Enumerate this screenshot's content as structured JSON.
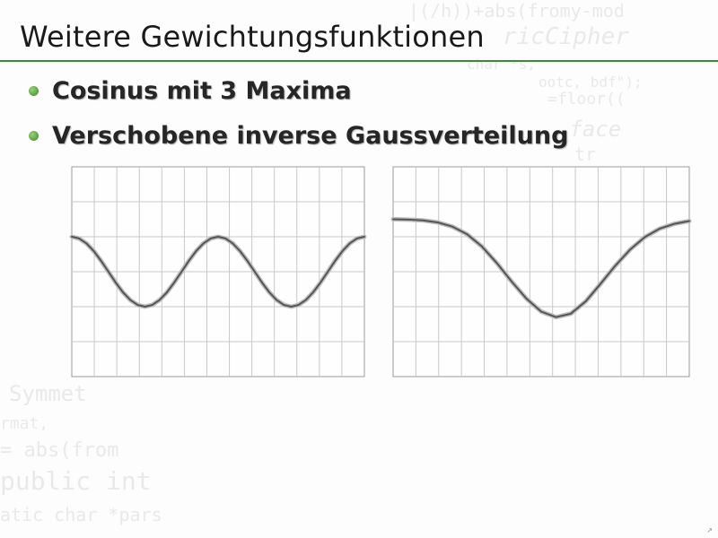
{
  "slide": {
    "title": "Weitere Gewichtungsfunktionen",
    "bullets": [
      "Cosinus mit 3 Maxima",
      "Verschobene inverse Gaussverteilung"
    ]
  },
  "colors": {
    "accent": "#3d8a3d",
    "title_text": "#1a1a1a",
    "curve": "#555555",
    "grid": "#c8c8c8"
  },
  "chart_data": [
    {
      "type": "line",
      "function": "cosine with 3 maxima",
      "x": [
        0.0,
        0.025,
        0.05,
        0.075,
        0.1,
        0.125,
        0.15,
        0.175,
        0.2,
        0.225,
        0.25,
        0.275,
        0.3,
        0.325,
        0.35,
        0.375,
        0.4,
        0.425,
        0.45,
        0.475,
        0.5,
        0.525,
        0.55,
        0.575,
        0.6,
        0.625,
        0.65,
        0.675,
        0.7,
        0.725,
        0.75,
        0.775,
        0.8,
        0.825,
        0.85,
        0.875,
        0.9,
        0.925,
        0.95,
        0.975,
        1.0
      ],
      "values": [
        1.0,
        0.95,
        0.81,
        0.59,
        0.31,
        0.0,
        -0.31,
        -0.59,
        -0.81,
        -0.95,
        -1.0,
        -0.95,
        -0.81,
        -0.59,
        -0.31,
        0.0,
        0.31,
        0.59,
        0.81,
        0.95,
        1.0,
        0.95,
        0.81,
        0.59,
        0.31,
        0.0,
        -0.31,
        -0.59,
        -0.81,
        -0.95,
        -1.0,
        -0.95,
        -0.81,
        -0.59,
        -0.31,
        0.0,
        0.31,
        0.59,
        0.81,
        0.95,
        1.0
      ],
      "xlim": [
        0,
        1
      ],
      "ylim": [
        -3,
        3
      ],
      "grid": true
    },
    {
      "type": "line",
      "function": "shifted inverse gaussian",
      "x": [
        0.0,
        0.05,
        0.1,
        0.15,
        0.2,
        0.25,
        0.3,
        0.35,
        0.4,
        0.45,
        0.5,
        0.55,
        0.6,
        0.65,
        0.7,
        0.75,
        0.8,
        0.85,
        0.9,
        0.95,
        1.0
      ],
      "values": [
        1.5,
        1.49,
        1.47,
        1.41,
        1.29,
        1.07,
        0.72,
        0.25,
        -0.28,
        -0.77,
        -1.14,
        -1.3,
        -1.2,
        -0.85,
        -0.35,
        0.17,
        0.63,
        0.99,
        1.23,
        1.37,
        1.45
      ],
      "xlim": [
        0,
        1
      ],
      "ylim": [
        -3,
        3
      ],
      "grid": true
    }
  ]
}
